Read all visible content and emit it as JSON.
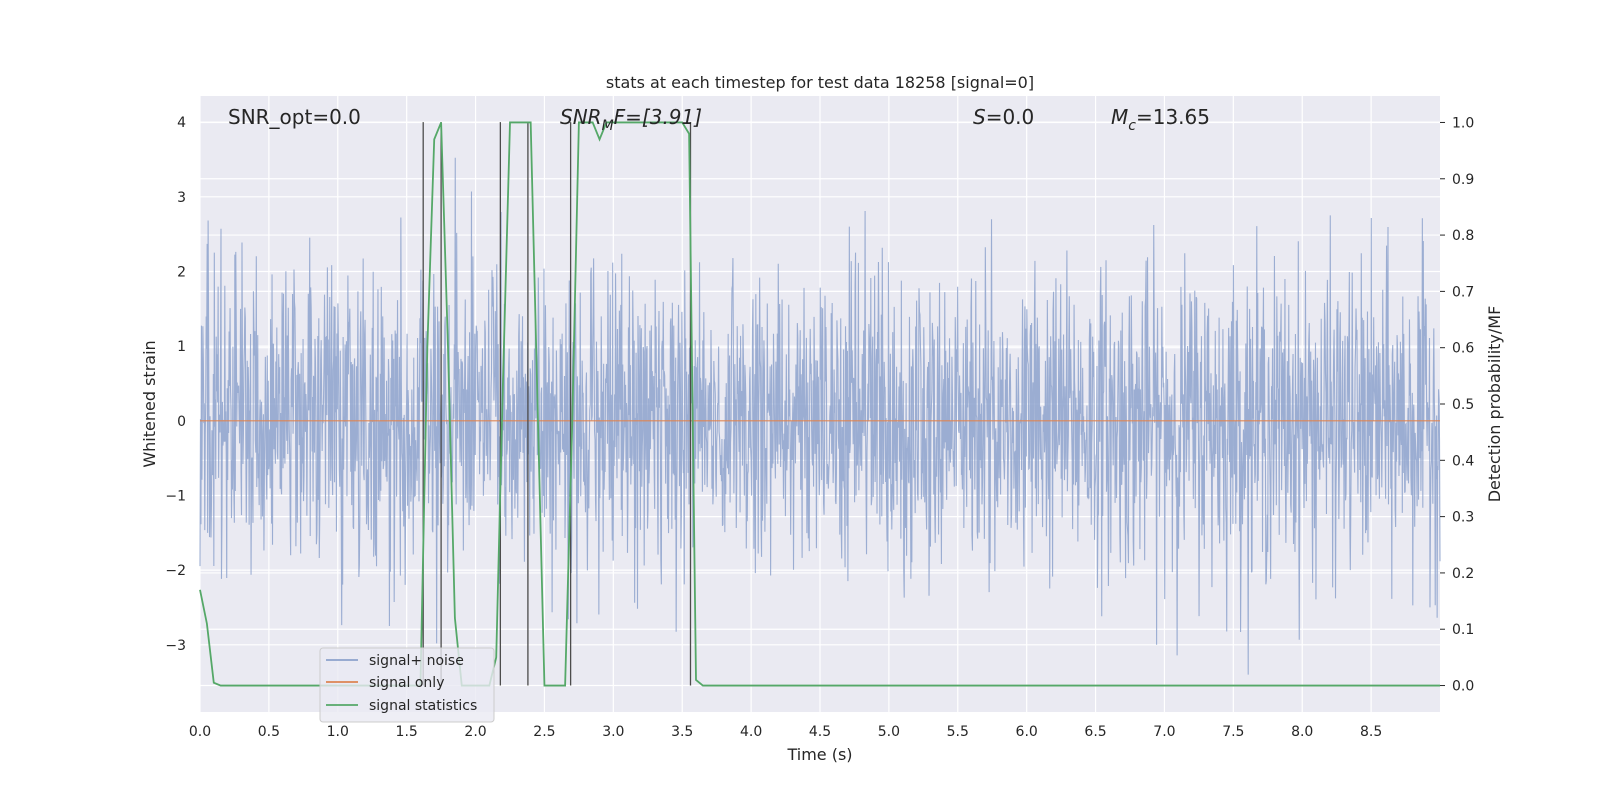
{
  "chart_data": {
    "type": "line",
    "title": "stats at each timestep for test data 18258 [signal=0]",
    "xlabel": "Time (s)",
    "ylabel_left": "Whitened strain",
    "ylabel_right": "Detection probability/MF",
    "xlim": [
      0.0,
      9.0
    ],
    "ylim_left": [
      -3.9,
      4.35
    ],
    "ylim_right": [
      -0.047,
      1.047
    ],
    "xticks": [
      "0.0",
      "0.5",
      "1.0",
      "1.5",
      "2.0",
      "2.5",
      "3.0",
      "3.5",
      "4.0",
      "4.5",
      "5.0",
      "5.5",
      "6.0",
      "6.5",
      "7.0",
      "7.5",
      "8.0",
      "8.5"
    ],
    "yticks_left": [
      "4",
      "3",
      "2",
      "1",
      "0",
      "−1",
      "−2",
      "−3"
    ],
    "yticks_right": [
      "1.0",
      "0.9",
      "0.8",
      "0.7",
      "0.6",
      "0.5",
      "0.4",
      "0.3",
      "0.2",
      "0.1",
      "0.0"
    ],
    "grid": true,
    "legend_position": "lower-left",
    "annotations": {
      "snr_opt": "SNR_opt=0.0",
      "snr_mf_main": "SNR",
      "snr_mf_sub": "M",
      "snr_mf_rest": "F=[3.91]",
      "s_main": "S",
      "s_rest": "=0.0",
      "mc_main": "M",
      "mc_sub": "c",
      "mc_rest": "=13.65"
    },
    "series": [
      {
        "name": "signal+ noise",
        "color": "#8da2cc",
        "description_points": {
          "x_range": [
            0.0,
            9.0
          ],
          "approx_envelope": [
            -3.4,
            4.0
          ]
        }
      },
      {
        "name": "signal only",
        "color": "#dd8452",
        "x": [
          0.0,
          9.0
        ],
        "y": [
          0.0,
          0.0
        ]
      },
      {
        "name": "signal statistics",
        "color": "#55a868",
        "axis": "right",
        "x": [
          0.0,
          0.05,
          0.1,
          0.15,
          1.5,
          1.6,
          1.65,
          1.7,
          1.75,
          1.8,
          1.85,
          1.9,
          2.0,
          2.1,
          2.15,
          2.2,
          2.25,
          2.3,
          2.35,
          2.4,
          2.45,
          2.5,
          2.6,
          2.65,
          2.7,
          2.75,
          2.8,
          2.85,
          2.9,
          2.95,
          3.0,
          3.1,
          3.2,
          3.3,
          3.4,
          3.5,
          3.55,
          3.6,
          3.65,
          3.7,
          3.8,
          9.0
        ],
        "y": [
          0.17,
          0.11,
          0.005,
          0.0,
          0.0,
          0.0,
          0.6,
          0.97,
          1.0,
          0.6,
          0.12,
          0.0,
          0.0,
          0.0,
          0.05,
          0.55,
          1.0,
          1.0,
          1.0,
          1.0,
          0.5,
          0.0,
          0.0,
          0.0,
          0.45,
          1.0,
          1.0,
          1.0,
          0.97,
          1.0,
          1.0,
          1.0,
          1.0,
          1.0,
          1.0,
          1.0,
          0.98,
          0.01,
          0.0,
          0.0,
          0.0,
          0.0
        ]
      }
    ],
    "vertical_lines_x": [
      1.62,
      1.75,
      2.18,
      2.38,
      2.69,
      3.56
    ],
    "vertical_line_color": "#4c4c4c",
    "background_color": "#eaeaf2"
  }
}
